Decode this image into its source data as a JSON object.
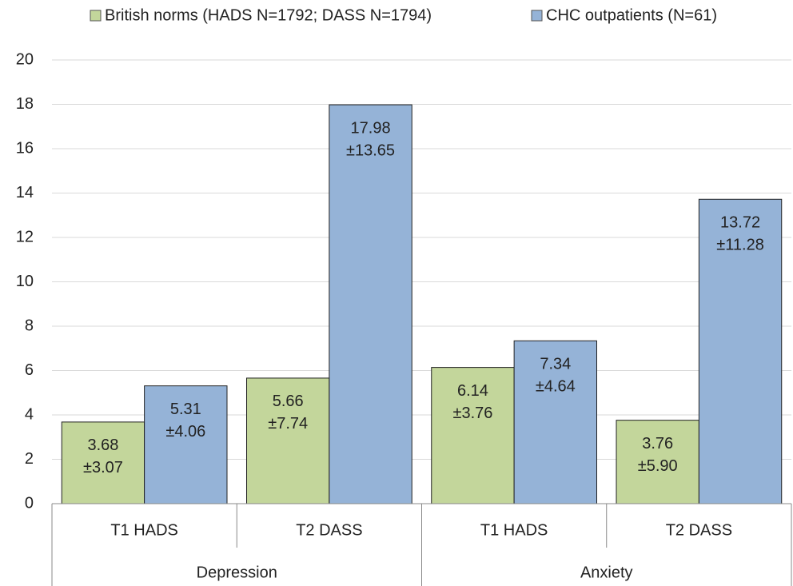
{
  "chart_data": {
    "type": "bar",
    "categories": [
      "T1 HADS",
      "T2 DASS",
      "T1 HADS",
      "T2 DASS"
    ],
    "groups": [
      "Depression",
      "Anxiety"
    ],
    "series": [
      {
        "name": "British norms (HADS N=1792; DASS N=1794)",
        "color": "#c3d69b",
        "values": [
          3.68,
          5.66,
          6.14,
          3.76
        ],
        "error_labels": [
          "±3.07",
          "±7.74",
          "±3.76",
          "±5.90"
        ]
      },
      {
        "name": "CHC outpatients (N=61)",
        "color": "#95b3d7",
        "values": [
          5.31,
          17.98,
          7.34,
          13.72
        ],
        "error_labels": [
          "±4.06",
          "±13.65",
          "±4.64",
          "±11.28"
        ]
      }
    ],
    "ylim": [
      0,
      20
    ],
    "yticks": [
      0,
      2,
      4,
      6,
      8,
      10,
      12,
      14,
      16,
      18,
      20
    ],
    "grid": true,
    "legend": "top"
  }
}
